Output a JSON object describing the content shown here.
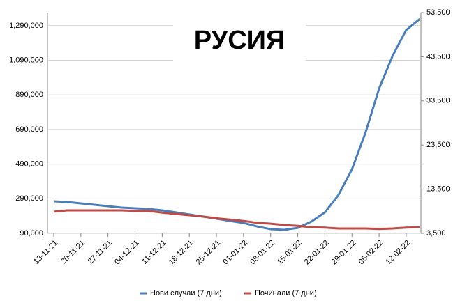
{
  "chart_data": {
    "type": "line",
    "title": "РУСИЯ",
    "categories": [
      "13-11-21",
      null,
      "20-11-21",
      null,
      "27-11-21",
      null,
      "04-12-21",
      null,
      "11-12-21",
      null,
      "18-12-21",
      null,
      "25-12-21",
      null,
      "01-01-22",
      null,
      "08-01-22",
      null,
      "15-01-22",
      null,
      "22-01-22",
      null,
      "29-01-22",
      null,
      "05-02-22",
      null,
      "12-02-22",
      null
    ],
    "series": [
      {
        "name": "Нови случаи (7 дни)",
        "color": "#4a7ebb",
        "axis": "y",
        "values": [
          275000,
          271000,
          263000,
          255000,
          247000,
          239000,
          235000,
          231000,
          223000,
          211000,
          199000,
          187000,
          175000,
          162000,
          150000,
          130000,
          114000,
          110000,
          122000,
          158000,
          211000,
          311000,
          460000,
          673000,
          927000,
          1116000,
          1265000,
          1329000
        ]
      },
      {
        "name": "Починали (7 дни)",
        "color": "#be4b48",
        "axis": "y2",
        "values": [
          8400,
          8700,
          8700,
          8700,
          8700,
          8700,
          8600,
          8600,
          8200,
          7900,
          7600,
          7300,
          6900,
          6600,
          6300,
          5900,
          5700,
          5400,
          5200,
          4900,
          4800,
          4600,
          4600,
          4600,
          4500,
          4600,
          4800,
          4900
        ]
      }
    ],
    "ylim": [
      90000,
      1366000
    ],
    "yticks": [
      {
        "value": 90000,
        "label": "90,000"
      },
      {
        "value": 290000,
        "label": "290,000"
      },
      {
        "value": 490000,
        "label": "490,000"
      },
      {
        "value": 690000,
        "label": "690,000"
      },
      {
        "value": 890000,
        "label": "890,000"
      },
      {
        "value": 1090000,
        "label": "1,090,000"
      },
      {
        "value": 1290000,
        "label": "1,290,000"
      }
    ],
    "y2lim": [
      3500,
      53500
    ],
    "y2ticks": [
      {
        "value": 3500,
        "label": "3,500"
      },
      {
        "value": 13500,
        "label": "13,500"
      },
      {
        "value": 23500,
        "label": "23,500"
      },
      {
        "value": 33500,
        "label": "33,500"
      },
      {
        "value": 43500,
        "label": "43,500"
      },
      {
        "value": 53500,
        "label": "53,500"
      }
    ],
    "grid": true,
    "legend": "bottom"
  }
}
